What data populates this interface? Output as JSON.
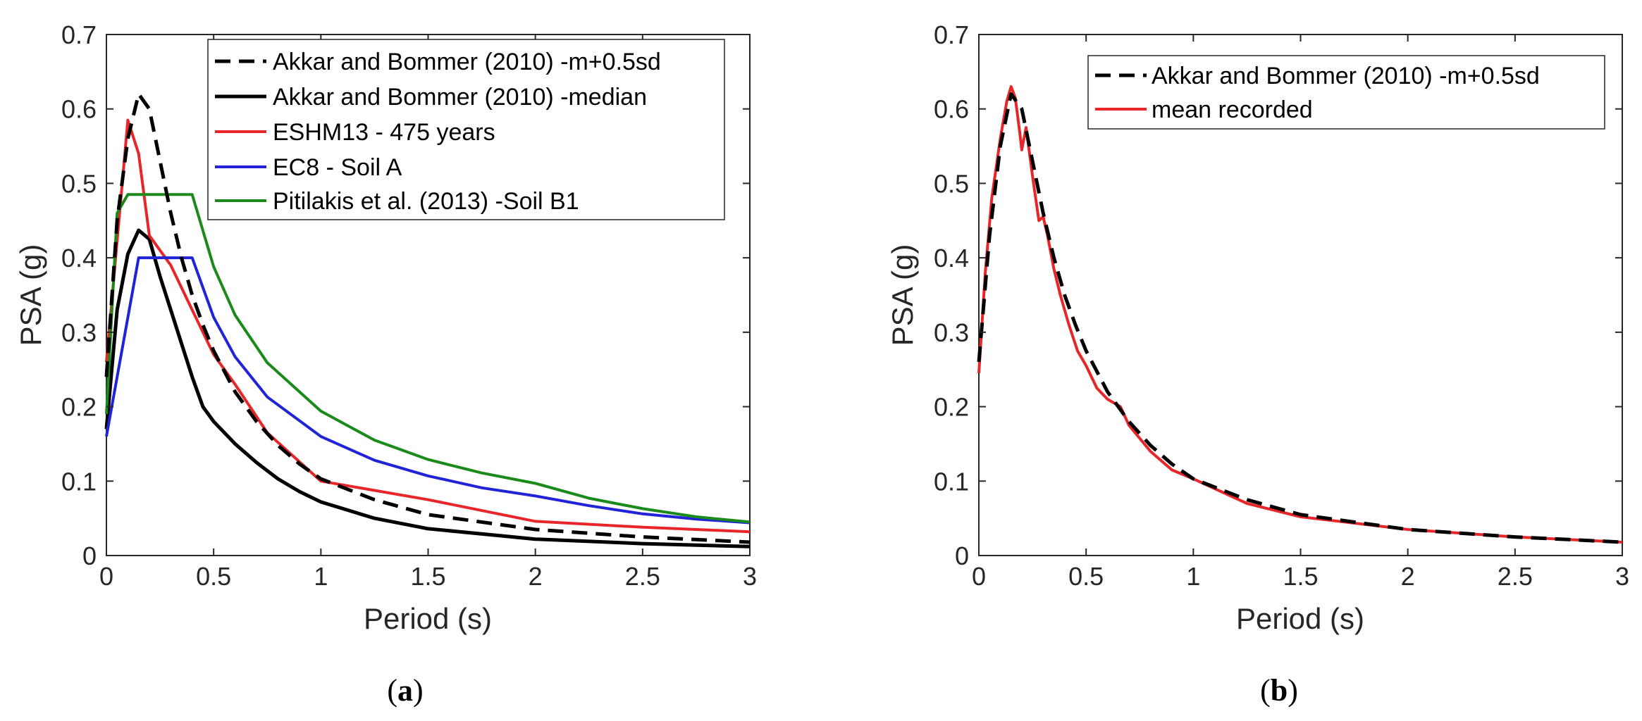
{
  "chart_data": [
    {
      "type": "line",
      "caption": "a",
      "xlabel": "Period (s)",
      "ylabel": "PSA (g)",
      "xlim": [
        0,
        3
      ],
      "ylim": [
        0,
        0.7
      ],
      "xticks": [
        0,
        0.5,
        1,
        1.5,
        2,
        2.5,
        3
      ],
      "xtick_labels": [
        "0",
        "0.5",
        "1",
        "1.5",
        "2",
        "2.5",
        "3"
      ],
      "yticks": [
        0,
        0.1,
        0.2,
        0.3,
        0.4,
        0.5,
        0.6,
        0.7
      ],
      "ytick_labels": [
        "0",
        "0.1",
        "0.2",
        "0.3",
        "0.4",
        "0.5",
        "0.6",
        "0.7"
      ],
      "grid": false,
      "legend_position": "top-right",
      "series": [
        {
          "name": "Akkar and Bommer (2010) -m+0.5sd",
          "color": "#000000",
          "dash": true,
          "x": [
            0,
            0.05,
            0.1,
            0.15,
            0.2,
            0.25,
            0.3,
            0.35,
            0.4,
            0.45,
            0.5,
            0.6,
            0.7,
            0.8,
            0.9,
            1,
            1.25,
            1.5,
            2,
            2.5,
            3
          ],
          "y": [
            0.24,
            0.45,
            0.56,
            0.62,
            0.6,
            0.53,
            0.46,
            0.4,
            0.35,
            0.31,
            0.275,
            0.22,
            0.18,
            0.148,
            0.123,
            0.103,
            0.075,
            0.055,
            0.035,
            0.025,
            0.018
          ]
        },
        {
          "name": "Akkar and Bommer (2010) -median",
          "color": "#000000",
          "dash": false,
          "x": [
            0,
            0.05,
            0.1,
            0.15,
            0.2,
            0.25,
            0.3,
            0.35,
            0.4,
            0.45,
            0.5,
            0.6,
            0.7,
            0.8,
            0.9,
            1,
            1.25,
            1.5,
            2,
            2.5,
            3
          ],
          "y": [
            0.17,
            0.33,
            0.405,
            0.437,
            0.425,
            0.375,
            0.33,
            0.285,
            0.24,
            0.2,
            0.18,
            0.15,
            0.125,
            0.103,
            0.086,
            0.072,
            0.05,
            0.036,
            0.022,
            0.016,
            0.012
          ]
        },
        {
          "name": "ESHM13 - 475 years",
          "color": "#e8262a",
          "dash": false,
          "x": [
            0,
            0.1,
            0.15,
            0.2,
            0.3,
            0.4,
            0.5,
            0.6,
            0.75,
            1,
            1.5,
            2,
            2.5,
            3
          ],
          "y": [
            0.26,
            0.585,
            0.54,
            0.43,
            0.39,
            0.33,
            0.27,
            0.23,
            0.165,
            0.1,
            0.075,
            0.046,
            0.038,
            0.032
          ]
        },
        {
          "name": "EC8 - Soil A",
          "color": "#2024d6",
          "dash": false,
          "x": [
            0,
            0.15,
            0.2,
            0.25,
            0.3,
            0.35,
            0.4,
            0.5,
            0.6,
            0.75,
            1,
            1.25,
            1.5,
            1.75,
            2,
            2.25,
            2.5,
            2.75,
            3
          ],
          "y": [
            0.16,
            0.4,
            0.4,
            0.4,
            0.4,
            0.4,
            0.4,
            0.32,
            0.267,
            0.213,
            0.16,
            0.128,
            0.107,
            0.091,
            0.08,
            0.067,
            0.056,
            0.049,
            0.044
          ]
        },
        {
          "name": "Pitilakis et al. (2013) -Soil B1",
          "color": "#1a8a1a",
          "dash": false,
          "x": [
            0,
            0.05,
            0.1,
            0.2,
            0.3,
            0.4,
            0.5,
            0.6,
            0.75,
            1,
            1.25,
            1.5,
            1.75,
            2,
            2.25,
            2.5,
            2.75,
            3
          ],
          "y": [
            0.19,
            0.46,
            0.485,
            0.485,
            0.485,
            0.485,
            0.388,
            0.323,
            0.259,
            0.194,
            0.155,
            0.129,
            0.111,
            0.097,
            0.077,
            0.063,
            0.052,
            0.045
          ]
        }
      ]
    },
    {
      "type": "line",
      "caption": "b",
      "xlabel": "Period (s)",
      "ylabel": "PSA (g)",
      "xlim": [
        0,
        3
      ],
      "ylim": [
        0,
        0.7
      ],
      "xticks": [
        0,
        0.5,
        1,
        1.5,
        2,
        2.5,
        3
      ],
      "xtick_labels": [
        "0",
        "0.5",
        "1",
        "1.5",
        "2",
        "2.5",
        "3"
      ],
      "yticks": [
        0,
        0.1,
        0.2,
        0.3,
        0.4,
        0.5,
        0.6,
        0.7
      ],
      "ytick_labels": [
        "0",
        "0.1",
        "0.2",
        "0.3",
        "0.4",
        "0.5",
        "0.6",
        "0.7"
      ],
      "grid": false,
      "legend_position": "top-right",
      "series": [
        {
          "name": "Akkar and Bommer (2010) -m+0.5sd",
          "color": "#000000",
          "dash": true,
          "x": [
            0,
            0.05,
            0.1,
            0.15,
            0.2,
            0.25,
            0.3,
            0.35,
            0.4,
            0.45,
            0.5,
            0.6,
            0.7,
            0.8,
            0.9,
            1,
            1.25,
            1.5,
            2,
            2.5,
            3
          ],
          "y": [
            0.26,
            0.43,
            0.55,
            0.62,
            0.6,
            0.53,
            0.46,
            0.4,
            0.35,
            0.31,
            0.275,
            0.22,
            0.18,
            0.148,
            0.123,
            0.103,
            0.075,
            0.055,
            0.035,
            0.025,
            0.018
          ]
        },
        {
          "name": "mean recorded",
          "color": "#e8262a",
          "dash": false,
          "x": [
            0,
            0.03,
            0.06,
            0.1,
            0.13,
            0.15,
            0.17,
            0.19,
            0.2,
            0.22,
            0.25,
            0.28,
            0.3,
            0.32,
            0.35,
            0.38,
            0.42,
            0.46,
            0.5,
            0.55,
            0.6,
            0.66,
            0.7,
            0.8,
            0.9,
            1,
            1.25,
            1.5,
            2,
            2.5,
            3
          ],
          "y": [
            0.245,
            0.38,
            0.48,
            0.56,
            0.61,
            0.63,
            0.615,
            0.57,
            0.545,
            0.575,
            0.51,
            0.45,
            0.455,
            0.43,
            0.385,
            0.35,
            0.31,
            0.275,
            0.255,
            0.225,
            0.21,
            0.2,
            0.175,
            0.14,
            0.115,
            0.103,
            0.07,
            0.052,
            0.035,
            0.025,
            0.018
          ]
        }
      ]
    }
  ]
}
